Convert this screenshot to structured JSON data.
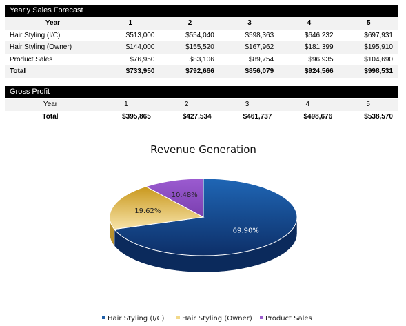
{
  "forecast": {
    "title": "Yearly Sales Forecast",
    "header": [
      "Year",
      "1",
      "2",
      "3",
      "4",
      "5"
    ],
    "rows": [
      {
        "label": "Hair Styling (I/C)",
        "values": [
          "$513,000",
          "$554,040",
          "$598,363",
          "$646,232",
          "$697,931"
        ]
      },
      {
        "label": "Hair Styling (Owner)",
        "values": [
          "$144,000",
          "$155,520",
          "$167,962",
          "$181,399",
          "$195,910"
        ]
      },
      {
        "label": "Product Sales",
        "values": [
          "$76,950",
          "$83,106",
          "$89,754",
          "$96,935",
          "$104,690"
        ]
      },
      {
        "label": "Total",
        "values": [
          "$733,950",
          "$792,666",
          "$856,079",
          "$924,566",
          "$998,531"
        ]
      }
    ]
  },
  "gross_profit": {
    "title": "Gross Profit",
    "header": [
      "Year",
      "1",
      "2",
      "3",
      "4",
      "5"
    ],
    "rows": [
      {
        "label": "Total",
        "values": [
          "$395,865",
          "$427,534",
          "$461,737",
          "$498,676",
          "$538,570"
        ]
      }
    ]
  },
  "chart_data": {
    "type": "pie",
    "title": "Revenue Generation",
    "categories": [
      "Hair Styling (I/C)",
      "Hair Styling (Owner)",
      "Product Sales"
    ],
    "values": [
      69.9,
      19.62,
      10.48
    ],
    "labels": [
      "69.90%",
      "19.62%",
      "10.48%"
    ],
    "colors": [
      "#1f5fa8",
      "#f2d98a",
      "#9e5fcf"
    ],
    "legend_position": "bottom",
    "style": "3d"
  }
}
